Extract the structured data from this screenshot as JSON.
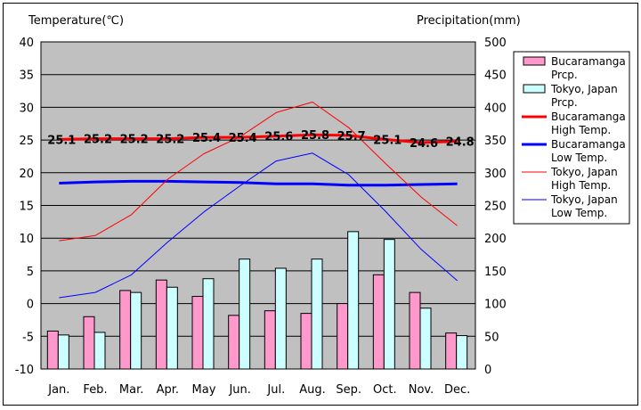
{
  "chart_data": {
    "type": "bar+line",
    "left_axis_title": "Temperature(℃)",
    "right_axis_title": "Precipitation(mm)",
    "categories": [
      "Jan.",
      "Feb.",
      "Mar.",
      "Apr.",
      "May",
      "Jun.",
      "Jul.",
      "Aug.",
      "Sep.",
      "Oct.",
      "Nov.",
      "Dec."
    ],
    "left_ylim": [
      -10,
      40
    ],
    "left_ticks": [
      "-10",
      "-5",
      "0",
      "5",
      "10",
      "15",
      "20",
      "25",
      "30",
      "35",
      "40"
    ],
    "right_ylim": [
      0,
      500
    ],
    "right_ticks": [
      "0",
      "50",
      "100",
      "150",
      "200",
      "250",
      "300",
      "350",
      "400",
      "450",
      "500"
    ],
    "grid": "horizontal",
    "legend_position": "right",
    "bars": [
      {
        "name": "Bucaramanga Prcp.",
        "name_lines": [
          "Bucaramanga",
          "Prcp."
        ],
        "color": "#ff99cc",
        "values": [
          58,
          80,
          120,
          136,
          111,
          82,
          89,
          85,
          100,
          144,
          117,
          55
        ]
      },
      {
        "name": "Tokyo, Japan Prcp.",
        "name_lines": [
          "Tokyo, Japan",
          "Prcp."
        ],
        "color": "#ccffff",
        "values": [
          52,
          56,
          117,
          125,
          138,
          168,
          154,
          168,
          210,
          198,
          93,
          51
        ]
      }
    ],
    "lines": [
      {
        "name": "Bucaramanga High Temp.",
        "name_lines": [
          "Bucaramanga",
          "High Temp."
        ],
        "color": "#ff0000",
        "width": 3,
        "values": [
          25.1,
          25.2,
          25.2,
          25.2,
          25.4,
          25.4,
          25.6,
          25.8,
          25.7,
          25.1,
          24.6,
          24.8
        ],
        "labels": [
          "25.1",
          "25.2",
          "25.2",
          "25.2",
          "25.4",
          "25.4",
          "25.6",
          "25.8",
          "25.7",
          "25.1",
          "24.6",
          "24.8"
        ]
      },
      {
        "name": "Bucaramanga Low Temp.",
        "name_lines": [
          "Bucaramanga",
          "Low Temp."
        ],
        "color": "#0000ff",
        "width": 3,
        "values": [
          18.4,
          18.6,
          18.7,
          18.7,
          18.6,
          18.5,
          18.3,
          18.3,
          18.1,
          18.1,
          18.2,
          18.3
        ]
      },
      {
        "name": "Tokyo, Japan High Temp.",
        "name_lines": [
          "Tokyo, Japan",
          "High Temp."
        ],
        "color": "#ff0000",
        "width": 1,
        "values": [
          9.6,
          10.4,
          13.6,
          19.0,
          22.9,
          25.5,
          29.2,
          30.8,
          26.9,
          21.5,
          16.3,
          11.9
        ]
      },
      {
        "name": "Tokyo, Japan Low Temp.",
        "name_lines": [
          "Tokyo, Japan",
          "Low Temp."
        ],
        "color": "#0000ff",
        "width": 1,
        "values": [
          0.9,
          1.7,
          4.4,
          9.4,
          14.0,
          18.0,
          21.8,
          23.0,
          19.7,
          14.2,
          8.3,
          3.5
        ]
      }
    ]
  }
}
